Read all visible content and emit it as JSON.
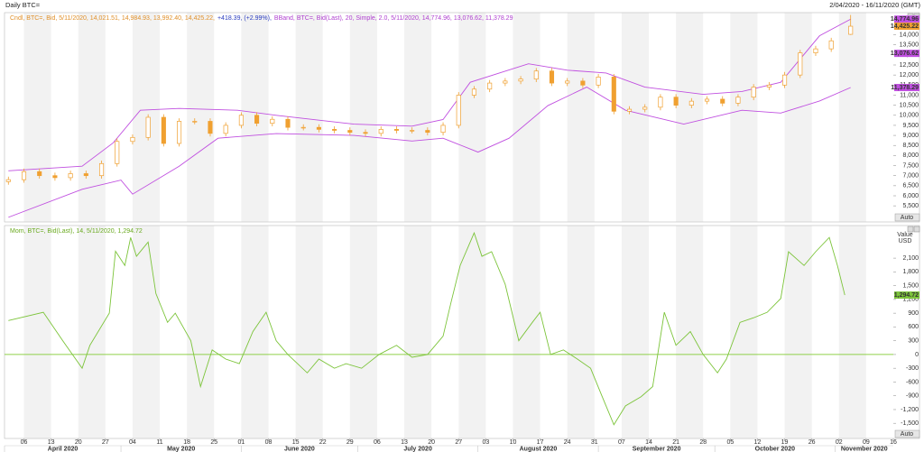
{
  "header": {
    "title": "Daily BTC=",
    "range": "2/04/2020 - 16/11/2020 (GMT)"
  },
  "chart_data": [
    {
      "type": "candlestick",
      "legend": [
        {
          "text": "Cndl, BTC=, Bid, 5/11/2020, 14,021.51, 14,984.93, 13,992.40, 14,425.22,",
          "color": "#e0902a"
        },
        {
          "text": "+418.39, (+2.99%),",
          "color": "#2a3cbf"
        },
        {
          "text": "BBand, BTC=, Bid(Last), 20, Simple, 2.0, 5/11/2020, 14,774.96, 13,076.62, 11,378.29",
          "color": "#b040d0"
        }
      ],
      "auto_label": "Auto",
      "xlim": [
        0,
        229
      ],
      "ylim": [
        4700,
        15100
      ],
      "yticks": [
        {
          "value": 5500,
          "label": "5,500"
        },
        {
          "value": 6000,
          "label": "6,000"
        },
        {
          "value": 6500,
          "label": "6,500"
        },
        {
          "value": 7000,
          "label": "7,000"
        },
        {
          "value": 7500,
          "label": "7,500"
        },
        {
          "value": 8000,
          "label": "8,000"
        },
        {
          "value": 8500,
          "label": "8,500"
        },
        {
          "value": 9000,
          "label": "9,000"
        },
        {
          "value": 9500,
          "label": "9,500"
        },
        {
          "value": 10000,
          "label": "10,000"
        },
        {
          "value": 10500,
          "label": "10,500"
        },
        {
          "value": 11000,
          "label": "11,000"
        },
        {
          "value": 11500,
          "label": "11,500"
        },
        {
          "value": 12000,
          "label": "12,000"
        },
        {
          "value": 12500,
          "label": "12,500"
        },
        {
          "value": 13000,
          "label": "13,000"
        },
        {
          "value": 13500,
          "label": "13,500"
        },
        {
          "value": 14000,
          "label": "14,000"
        }
      ],
      "candle_color": "#f0a030",
      "x": [
        1,
        5,
        9,
        13,
        17,
        21,
        25,
        29,
        33,
        37,
        41,
        45,
        49,
        53,
        57,
        61,
        65,
        69,
        73,
        77,
        81,
        85,
        89,
        93,
        97,
        101,
        105,
        109,
        113,
        117,
        121,
        125,
        129,
        133,
        137,
        141,
        145,
        149,
        153,
        157,
        161,
        165,
        169,
        173,
        177,
        181,
        185,
        189,
        193,
        197,
        201,
        205,
        209,
        213,
        218
      ],
      "open": [
        6700,
        6800,
        7200,
        7000,
        6900,
        7100,
        7000,
        7600,
        8700,
        8900,
        9900,
        8600,
        9700,
        9700,
        9100,
        9500,
        10000,
        9600,
        9800,
        9400,
        9400,
        9300,
        9250,
        9150,
        9100,
        9300,
        9250,
        9250,
        9150,
        9500,
        11000,
        11300,
        11600,
        11700,
        11800,
        12200,
        11600,
        11700,
        11500,
        11900,
        10200,
        10300,
        10400,
        10900,
        10500,
        10700,
        10800,
        10600,
        10900,
        11400,
        11500,
        12000,
        13100,
        13300,
        14021.51
      ],
      "high": [
        6950,
        7350,
        7350,
        7150,
        7250,
        7250,
        7750,
        8850,
        9050,
        10050,
        10050,
        9850,
        9850,
        9850,
        9650,
        10150,
        10150,
        9950,
        9950,
        9550,
        9550,
        9450,
        9400,
        9300,
        9450,
        9450,
        9400,
        9400,
        9650,
        11150,
        11450,
        11750,
        11850,
        11950,
        12350,
        12350,
        11850,
        11850,
        12050,
        12050,
        10450,
        10550,
        11050,
        11050,
        10850,
        10950,
        10950,
        11050,
        11550,
        11650,
        12150,
        13250,
        13450,
        13850,
        14984.93
      ],
      "low": [
        6550,
        6650,
        6850,
        6750,
        6750,
        6850,
        6850,
        7450,
        8550,
        8750,
        8450,
        8450,
        9550,
        8950,
        8950,
        9350,
        9450,
        9450,
        9250,
        9250,
        9150,
        9100,
        9000,
        8950,
        8950,
        9100,
        9100,
        9000,
        9000,
        9350,
        10850,
        11150,
        11450,
        11550,
        11650,
        11450,
        11450,
        11350,
        11350,
        10050,
        10050,
        10150,
        10250,
        10350,
        10350,
        10550,
        10450,
        10450,
        10750,
        11250,
        11350,
        11850,
        12950,
        13150,
        13992.4
      ],
      "close": [
        6800,
        7200,
        7000,
        6900,
        7100,
        7000,
        7600,
        8700,
        8900,
        9900,
        8600,
        9700,
        9700,
        9100,
        9500,
        10000,
        9600,
        9800,
        9400,
        9400,
        9300,
        9250,
        9150,
        9100,
        9300,
        9250,
        9250,
        9150,
        9500,
        11000,
        11300,
        11600,
        11700,
        11800,
        12200,
        11600,
        11700,
        11500,
        11900,
        10200,
        10300,
        10400,
        10900,
        10500,
        10700,
        10800,
        10600,
        10900,
        11400,
        11500,
        12000,
        13100,
        13300,
        13700,
        14425.22
      ],
      "bands": [
        {
          "color": "#c050e0",
          "x": [
            1,
            20,
            28,
            35,
            45,
            60,
            70,
            90,
            105,
            113,
            120,
            135,
            145,
            155,
            165,
            180,
            190,
            200,
            210,
            218
          ],
          "values": [
            7240,
            7470,
            8630,
            10250,
            10340,
            10250,
            10000,
            9560,
            9460,
            9790,
            11640,
            12560,
            12240,
            12100,
            11400,
            11040,
            11180,
            11640,
            13950,
            14774.96
          ]
        },
        {
          "color": "#c050e0",
          "x": [
            1,
            20,
            30,
            33,
            45,
            55,
            70,
            90,
            105,
            113,
            122,
            130,
            140,
            150,
            160,
            175,
            190,
            200,
            210,
            218
          ],
          "values": [
            4930,
            6320,
            6780,
            6080,
            7470,
            8860,
            9090,
            9000,
            8720,
            8860,
            8170,
            8860,
            10480,
            11400,
            10250,
            9560,
            10250,
            10110,
            10710,
            11378.29
          ]
        }
      ],
      "badges": [
        {
          "value": 14774.96,
          "label": "14,774.96",
          "color": "#c050e0"
        },
        {
          "value": 14425.22,
          "label": "14,425.22",
          "color": "#f0a030"
        },
        {
          "value": 13076.62,
          "label": "13,076.62",
          "color": "#c050e0"
        },
        {
          "value": 11378.29,
          "label": "11,378.29",
          "color": "#c050e0"
        }
      ]
    },
    {
      "type": "line",
      "legend": [
        {
          "text": "Mom, BTC=, Bid(Last), 14, 5/11/2020, 1,294.72",
          "color": "#6aaa20"
        }
      ],
      "auto_label": "Auto",
      "ylabel_lines": [
        "Value",
        "USD"
      ],
      "xlim": [
        0,
        229
      ],
      "ylim": [
        -1830,
        2810
      ],
      "yticks": [
        {
          "value": -1500,
          "label": "-1,500"
        },
        {
          "value": -1200,
          "label": "-1,200"
        },
        -900,
        -600,
        -300,
        0,
        300,
        600,
        900,
        {
          "value": 1200,
          "label": "1,200"
        },
        {
          "value": 1500,
          "label": "1,500"
        },
        {
          "value": 1800,
          "label": "1,800"
        },
        {
          "value": 2100,
          "label": "2,100"
        }
      ],
      "zero_color": "#8fd04a",
      "xticks": [
        {
          "value": 5,
          "label": "06"
        },
        {
          "value": 12,
          "label": "13"
        },
        {
          "value": 19,
          "label": "20"
        },
        {
          "value": 26,
          "label": "27"
        },
        {
          "value": 33,
          "label": "04"
        },
        {
          "value": 40,
          "label": "11"
        },
        {
          "value": 47,
          "label": "18"
        },
        {
          "value": 54,
          "label": "25"
        },
        {
          "value": 61,
          "label": "01"
        },
        {
          "value": 68,
          "label": "08"
        },
        {
          "value": 75,
          "label": "15"
        },
        {
          "value": 82,
          "label": "22"
        },
        {
          "value": 89,
          "label": "29"
        },
        {
          "value": 96,
          "label": "06"
        },
        {
          "value": 103,
          "label": "13"
        },
        {
          "value": 110,
          "label": "20"
        },
        {
          "value": 117,
          "label": "27"
        },
        {
          "value": 124,
          "label": "03"
        },
        {
          "value": 131,
          "label": "10"
        },
        {
          "value": 138,
          "label": "17"
        },
        {
          "value": 145,
          "label": "24"
        },
        {
          "value": 152,
          "label": "31"
        },
        {
          "value": 159,
          "label": "07"
        },
        {
          "value": 166,
          "label": "14"
        },
        {
          "value": 173,
          "label": "21"
        },
        {
          "value": 180,
          "label": "28"
        },
        {
          "value": 187,
          "label": "05"
        },
        {
          "value": 194,
          "label": "12"
        },
        {
          "value": 201,
          "label": "19"
        },
        {
          "value": 208,
          "label": "26"
        },
        {
          "value": 215,
          "label": "02"
        },
        {
          "value": 222,
          "label": "09"
        },
        {
          "value": 229,
          "label": "16"
        }
      ],
      "month_labels": [
        {
          "value": 0,
          "label": "April 2020"
        },
        {
          "value": 30,
          "label": "May 2020"
        },
        {
          "value": 61,
          "label": "June 2020"
        },
        {
          "value": 91,
          "label": "July 2020"
        },
        {
          "value": 122,
          "label": "August 2020"
        },
        {
          "value": 153,
          "label": "September 2020"
        },
        {
          "value": 183,
          "label": "October 2020"
        },
        {
          "value": 214,
          "label": "November 2020"
        }
      ],
      "series": [
        {
          "color": "#7cc43a",
          "x": [
            1,
            10,
            15,
            20,
            22,
            27,
            28.6,
            31,
            32.5,
            34,
            37,
            39,
            42,
            44,
            48,
            50.5,
            53.5,
            57,
            60.5,
            64,
            67.4,
            70,
            73,
            78,
            81,
            85,
            88,
            92,
            96.5,
            101,
            105,
            109,
            113,
            115,
            117.4,
            121,
            123,
            125.5,
            129,
            132.5,
            136,
            138,
            140.7,
            144,
            147.6,
            151,
            154,
            157,
            160,
            164,
            167,
            170,
            173,
            176.7,
            180,
            183.7,
            186,
            189.5,
            193,
            196.5,
            200,
            202,
            206,
            209,
            212.5,
            214.6,
            216.5
          ],
          "values": [
            740,
            920,
            300,
            -300,
            200,
            900,
            2250,
            1940,
            2550,
            2140,
            2450,
            1330,
            700,
            900,
            300,
            -700,
            100,
            -100,
            -200,
            500,
            920,
            300,
            0,
            -400,
            -100,
            -300,
            -200,
            -300,
            0,
            200,
            -60,
            0,
            400,
            1120,
            1940,
            2650,
            2140,
            2240,
            1530,
            300,
            700,
            920,
            0,
            100,
            -100,
            -300,
            -920,
            -1530,
            -1120,
            -920,
            -700,
            920,
            200,
            500,
            0,
            -400,
            -100,
            700,
            800,
            920,
            1220,
            2240,
            1940,
            2240,
            2550,
            1940,
            1294.72
          ]
        }
      ],
      "badges": [
        {
          "value": 1294.72,
          "label": "1,294.72",
          "color": "#7cc43a"
        }
      ]
    }
  ]
}
